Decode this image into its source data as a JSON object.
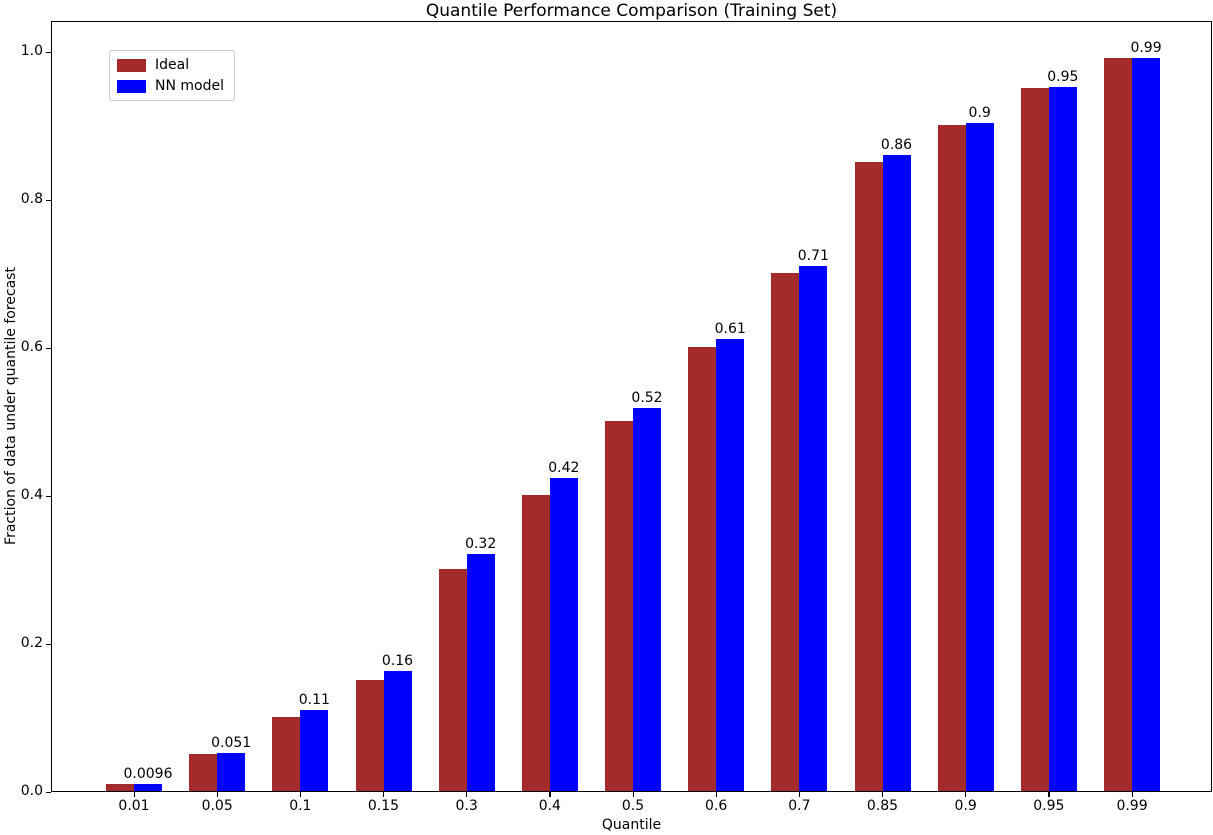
{
  "figure": {
    "title": "Quantile Performance Comparison (Training Set)",
    "xlabel": "Quantile",
    "ylabel": "Fraction of data under quantile forecast"
  },
  "legend": {
    "items": [
      {
        "label": "Ideal",
        "color": "#A52A2A"
      },
      {
        "label": "NN model",
        "color": "#0000FF"
      }
    ]
  },
  "chart_data": {
    "type": "bar",
    "title": "Quantile Performance Comparison (Training Set)",
    "xlabel": "Quantile",
    "ylabel": "Fraction of data under quantile forecast",
    "categories": [
      "0.01",
      "0.05",
      "0.1",
      "0.15",
      "0.3",
      "0.4",
      "0.5",
      "0.6",
      "0.7",
      "0.85",
      "0.9",
      "0.95",
      "0.99"
    ],
    "series": [
      {
        "name": "Ideal",
        "color": "#A52A2A",
        "values": [
          0.01,
          0.05,
          0.1,
          0.15,
          0.3,
          0.4,
          0.5,
          0.6,
          0.7,
          0.85,
          0.9,
          0.95,
          0.99
        ]
      },
      {
        "name": "NN model",
        "color": "#0000FF",
        "values": [
          0.0096,
          0.051,
          0.109,
          0.162,
          0.32,
          0.423,
          0.517,
          0.611,
          0.709,
          0.859,
          0.903,
          0.952,
          0.99
        ],
        "bar_labels": [
          "0.0096",
          "0.051",
          "0.11",
          "0.16",
          "0.32",
          "0.42",
          "0.52",
          "0.61",
          "0.71",
          "0.86",
          "0.9",
          "0.95",
          "0.99"
        ]
      }
    ],
    "ytick_labels": [
      "0.0",
      "0.2",
      "0.4",
      "0.6",
      "0.8",
      "1.0"
    ],
    "yticks": [
      0.0,
      0.2,
      0.4,
      0.6,
      0.8,
      1.0
    ],
    "ylim": [
      0.0,
      1.042
    ],
    "grid": false,
    "legend_position": "upper left",
    "bar_labels_on_series": "NN model"
  }
}
